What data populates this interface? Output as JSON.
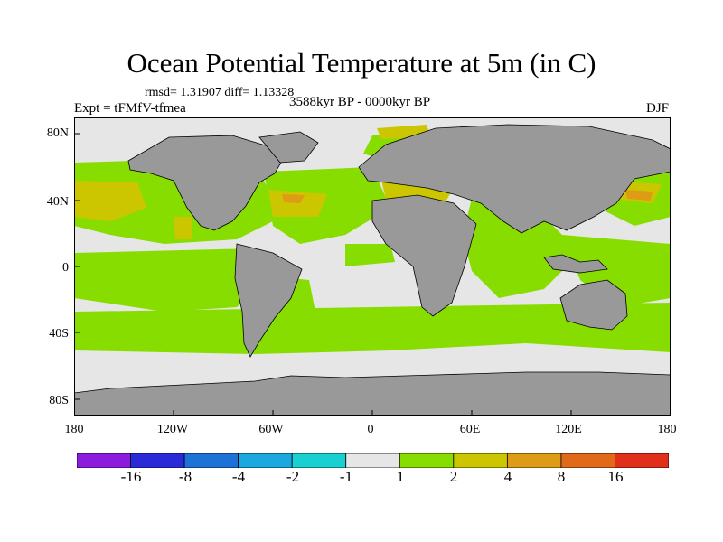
{
  "title": "Ocean Potential Temperature at 5m (in C)",
  "stats": "rmsd= 1.31907  diff= 1.13328",
  "experiment": "Expt = tFMfV-tfmea",
  "period": "3588kyr BP - 0000kyr BP",
  "season": "DJF",
  "map": {
    "projection": "cylindrical equidistant",
    "lat_ticks": [
      "80N",
      "40N",
      "0",
      "40S",
      "80S"
    ],
    "lon_ticks": [
      "180",
      "120W",
      "60W",
      "0",
      "60E",
      "120E",
      "180"
    ],
    "land_color": "#999999",
    "ocean_bins": [
      {
        "range": "-1 to 1",
        "color": "#e6e6e6"
      },
      {
        "range": "1 to 2",
        "color": "#88dd00"
      },
      {
        "range": "2 to 4",
        "color": "#ccc600"
      },
      {
        "range": "4 to 8",
        "color": "#dd9b16"
      }
    ]
  },
  "colorbar": {
    "colors": [
      "#8c1adf",
      "#2a2ad8",
      "#1d72d8",
      "#1aa8e0",
      "#18d0d0",
      "#e6e6e6",
      "#88dd00",
      "#ccc600",
      "#dd9b16",
      "#e0691a",
      "#e0301a"
    ],
    "labels": [
      "-16",
      "-8",
      "-4",
      "-2",
      "-1",
      "1",
      "2",
      "4",
      "8",
      "16"
    ]
  }
}
